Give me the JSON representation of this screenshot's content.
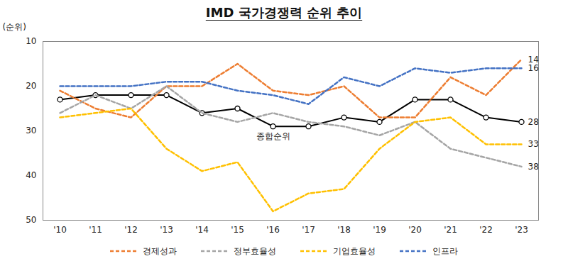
{
  "chart_data": {
    "type": "line",
    "title": "IMD 국가경쟁력 순위 추이",
    "y_label": "(순위)",
    "categories": [
      "'10",
      "'11",
      "'12",
      "'13",
      "'14",
      "'15",
      "'16",
      "'17",
      "'18",
      "'19",
      "'20",
      "'21",
      "'22",
      "'23"
    ],
    "series": [
      {
        "name": "종합순위",
        "color": "#000000",
        "line_style": "solid",
        "marker": "circle",
        "values": [
          23,
          22,
          22,
          22,
          26,
          25,
          29,
          29,
          27,
          28,
          23,
          23,
          27,
          28
        ]
      },
      {
        "name": "경제성과",
        "color": "#ED7D31",
        "line_style": "dashed",
        "values": [
          21,
          25,
          27,
          20,
          20,
          15,
          21,
          22,
          20,
          27,
          27,
          18,
          22,
          14
        ]
      },
      {
        "name": "정부효율성",
        "color": "#A5A5A5",
        "line_style": "dashed",
        "values": [
          26,
          22,
          25,
          20,
          26,
          28,
          26,
          28,
          29,
          31,
          28,
          34,
          36,
          38
        ]
      },
      {
        "name": "기업효율성",
        "color": "#FFC000",
        "line_style": "dashed",
        "values": [
          27,
          26,
          25,
          34,
          39,
          37,
          48,
          44,
          43,
          34,
          28,
          27,
          33,
          33
        ]
      },
      {
        "name": "인프라",
        "color": "#4472C4",
        "line_style": "dashed",
        "values": [
          20,
          20,
          20,
          19,
          19,
          21,
          22,
          24,
          18,
          20,
          16,
          17,
          16,
          16
        ]
      }
    ],
    "annotations": [
      {
        "text": "14",
        "x": "'23",
        "y": 14
      },
      {
        "text": "16",
        "x": "'23",
        "y": 16
      },
      {
        "text": "28",
        "x": "'23",
        "y": 28
      },
      {
        "text": "33",
        "x": "'23",
        "y": 33
      },
      {
        "text": "38",
        "x": "'23",
        "y": 38
      },
      {
        "text": "종합순위",
        "x": "'16",
        "y": 29
      }
    ],
    "ylim": [
      10,
      50
    ],
    "yticks": [
      10,
      20,
      30,
      40,
      50
    ],
    "reverse_y": true,
    "grid": false,
    "legend": "bottom"
  }
}
